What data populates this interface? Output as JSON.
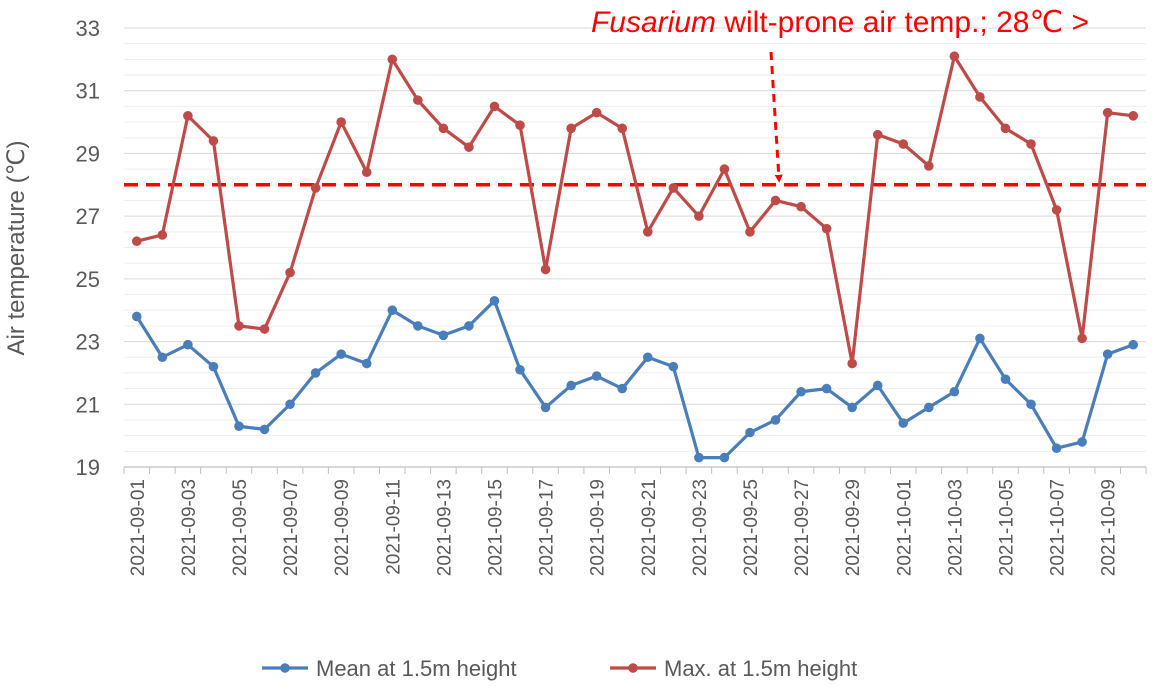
{
  "chart_data": {
    "type": "line",
    "ylabel": "Air temperature (℃)",
    "xlabel": "",
    "ylim": [
      19,
      33
    ],
    "yticks": [
      19,
      21,
      23,
      25,
      27,
      29,
      31,
      33
    ],
    "grid": true,
    "legend_position": "bottom",
    "x": [
      "2021-09-01",
      "2021-09-02",
      "2021-09-03",
      "2021-09-04",
      "2021-09-05",
      "2021-09-06",
      "2021-09-07",
      "2021-09-08",
      "2021-09-09",
      "2021-09-10",
      "2021-09-11",
      "2021-09-12",
      "2021-09-13",
      "2021-09-14",
      "2021-09-15",
      "2021-09-16",
      "2021-09-17",
      "2021-09-18",
      "2021-09-19",
      "2021-09-20",
      "2021-09-21",
      "2021-09-22",
      "2021-09-23",
      "2021-09-24",
      "2021-09-25",
      "2021-09-26",
      "2021-09-27",
      "2021-09-28",
      "2021-09-29",
      "2021-09-30",
      "2021-10-01",
      "2021-10-02",
      "2021-10-03",
      "2021-10-04",
      "2021-10-05",
      "2021-10-06",
      "2021-10-07",
      "2021-10-08",
      "2021-10-09",
      "2021-10-10"
    ],
    "xtick_labels": [
      "2021-09-01",
      "2021-09-03",
      "2021-09-05",
      "2021-09-07",
      "2021-09-09",
      "2021-09-11",
      "2021-09-13",
      "2021-09-15",
      "2021-09-17",
      "2021-09-19",
      "2021-09-21",
      "2021-09-23",
      "2021-09-25",
      "2021-09-27",
      "2021-09-29",
      "2021-10-01",
      "2021-10-03",
      "2021-10-05",
      "2021-10-07",
      "2021-10-09"
    ],
    "series": [
      {
        "name": "Mean at 1.5m height",
        "color": "#4a7ebb",
        "values": [
          23.8,
          22.5,
          22.9,
          22.2,
          20.3,
          20.2,
          21.0,
          22.0,
          22.6,
          22.3,
          24.0,
          23.5,
          23.2,
          23.5,
          24.3,
          22.1,
          20.9,
          21.6,
          21.9,
          21.5,
          22.5,
          22.2,
          19.3,
          19.3,
          20.1,
          20.5,
          21.4,
          21.5,
          20.9,
          21.6,
          20.4,
          20.9,
          21.4,
          23.1,
          21.8,
          21.0,
          19.6,
          19.8,
          22.6,
          22.9
        ]
      },
      {
        "name": "Max. at 1.5m height",
        "color": "#be4b48",
        "values": [
          26.2,
          26.4,
          30.2,
          29.4,
          23.5,
          23.4,
          25.2,
          27.9,
          30.0,
          28.4,
          32.0,
          30.7,
          29.8,
          29.2,
          30.5,
          29.9,
          25.3,
          29.8,
          30.3,
          29.8,
          26.5,
          27.9,
          27.0,
          28.5,
          26.5,
          27.5,
          27.3,
          26.6,
          22.3,
          29.6,
          29.3,
          28.6,
          32.1,
          30.8,
          29.8,
          29.3,
          27.2,
          23.1,
          30.3,
          30.2
        ]
      }
    ],
    "threshold": {
      "value": 28,
      "color": "#ff0000"
    },
    "annotation": {
      "italic": "Fusarium",
      "rest": " wilt-prone air temp.; 28℃ >",
      "color": "#ff0000"
    }
  }
}
